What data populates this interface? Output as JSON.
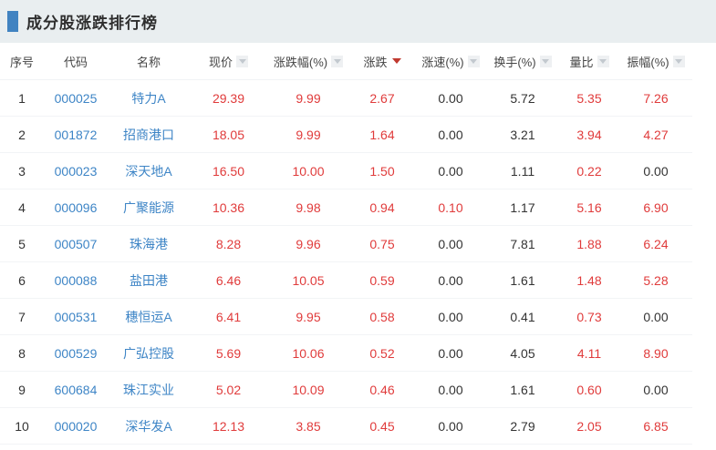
{
  "title": "成分股涨跌排行榜",
  "colors": {
    "accent_blue": "#4183c1",
    "link_blue": "#3e85c6",
    "up_red": "#e03b3b",
    "text_dark": "#333333",
    "header_text": "#454545",
    "band_background": "#e9eef0",
    "sort_arrow_inactive": "#c3c9cf",
    "sort_arrow_active": "#c0392f",
    "row_border": "#f2f4f6"
  },
  "table": {
    "columns": [
      {
        "key": "index",
        "label": "序号",
        "sortable": false,
        "sort_active": false
      },
      {
        "key": "code",
        "label": "代码",
        "sortable": false,
        "sort_active": false
      },
      {
        "key": "name",
        "label": "名称",
        "sortable": false,
        "sort_active": false
      },
      {
        "key": "price",
        "label": "现价",
        "sortable": true,
        "sort_active": false
      },
      {
        "key": "change-percent",
        "label": "涨跌幅(%)",
        "sortable": true,
        "sort_active": false
      },
      {
        "key": "change",
        "label": "涨跌",
        "sortable": true,
        "sort_active": true,
        "sort_direction": "desc"
      },
      {
        "key": "speed",
        "label": "涨速(%)",
        "sortable": true,
        "sort_active": false
      },
      {
        "key": "turnover",
        "label": "换手(%)",
        "sortable": true,
        "sort_active": false
      },
      {
        "key": "volume-ratio",
        "label": "量比",
        "sortable": true,
        "sort_active": false
      },
      {
        "key": "amplitude",
        "label": "振幅(%)",
        "sortable": true,
        "sort_active": false
      }
    ],
    "rows": [
      {
        "cells": [
          [
            "1",
            "dark"
          ],
          [
            "000025",
            "blue"
          ],
          [
            "特力A",
            "blue"
          ],
          [
            "29.39",
            "red"
          ],
          [
            "9.99",
            "red"
          ],
          [
            "2.67",
            "red"
          ],
          [
            "0.00",
            "dark"
          ],
          [
            "5.72",
            "dark"
          ],
          [
            "5.35",
            "red"
          ],
          [
            "7.26",
            "red"
          ]
        ]
      },
      {
        "cells": [
          [
            "2",
            "dark"
          ],
          [
            "001872",
            "blue"
          ],
          [
            "招商港口",
            "blue"
          ],
          [
            "18.05",
            "red"
          ],
          [
            "9.99",
            "red"
          ],
          [
            "1.64",
            "red"
          ],
          [
            "0.00",
            "dark"
          ],
          [
            "3.21",
            "dark"
          ],
          [
            "3.94",
            "red"
          ],
          [
            "4.27",
            "red"
          ]
        ]
      },
      {
        "cells": [
          [
            "3",
            "dark"
          ],
          [
            "000023",
            "blue"
          ],
          [
            "深天地A",
            "blue"
          ],
          [
            "16.50",
            "red"
          ],
          [
            "10.00",
            "red"
          ],
          [
            "1.50",
            "red"
          ],
          [
            "0.00",
            "dark"
          ],
          [
            "1.11",
            "dark"
          ],
          [
            "0.22",
            "red"
          ],
          [
            "0.00",
            "dark"
          ]
        ]
      },
      {
        "cells": [
          [
            "4",
            "dark"
          ],
          [
            "000096",
            "blue"
          ],
          [
            "广聚能源",
            "blue"
          ],
          [
            "10.36",
            "red"
          ],
          [
            "9.98",
            "red"
          ],
          [
            "0.94",
            "red"
          ],
          [
            "0.10",
            "red"
          ],
          [
            "1.17",
            "dark"
          ],
          [
            "5.16",
            "red"
          ],
          [
            "6.90",
            "red"
          ]
        ]
      },
      {
        "cells": [
          [
            "5",
            "dark"
          ],
          [
            "000507",
            "blue"
          ],
          [
            "珠海港",
            "blue"
          ],
          [
            "8.28",
            "red"
          ],
          [
            "9.96",
            "red"
          ],
          [
            "0.75",
            "red"
          ],
          [
            "0.00",
            "dark"
          ],
          [
            "7.81",
            "dark"
          ],
          [
            "1.88",
            "red"
          ],
          [
            "6.24",
            "red"
          ]
        ]
      },
      {
        "cells": [
          [
            "6",
            "dark"
          ],
          [
            "000088",
            "blue"
          ],
          [
            "盐田港",
            "blue"
          ],
          [
            "6.46",
            "red"
          ],
          [
            "10.05",
            "red"
          ],
          [
            "0.59",
            "red"
          ],
          [
            "0.00",
            "dark"
          ],
          [
            "1.61",
            "dark"
          ],
          [
            "1.48",
            "red"
          ],
          [
            "5.28",
            "red"
          ]
        ]
      },
      {
        "cells": [
          [
            "7",
            "dark"
          ],
          [
            "000531",
            "blue"
          ],
          [
            "穗恒运A",
            "blue"
          ],
          [
            "6.41",
            "red"
          ],
          [
            "9.95",
            "red"
          ],
          [
            "0.58",
            "red"
          ],
          [
            "0.00",
            "dark"
          ],
          [
            "0.41",
            "dark"
          ],
          [
            "0.73",
            "red"
          ],
          [
            "0.00",
            "dark"
          ]
        ]
      },
      {
        "cells": [
          [
            "8",
            "dark"
          ],
          [
            "000529",
            "blue"
          ],
          [
            "广弘控股",
            "blue"
          ],
          [
            "5.69",
            "red"
          ],
          [
            "10.06",
            "red"
          ],
          [
            "0.52",
            "red"
          ],
          [
            "0.00",
            "dark"
          ],
          [
            "4.05",
            "dark"
          ],
          [
            "4.11",
            "red"
          ],
          [
            "8.90",
            "red"
          ]
        ]
      },
      {
        "cells": [
          [
            "9",
            "dark"
          ],
          [
            "600684",
            "blue"
          ],
          [
            "珠江实业",
            "blue"
          ],
          [
            "5.02",
            "red"
          ],
          [
            "10.09",
            "red"
          ],
          [
            "0.46",
            "red"
          ],
          [
            "0.00",
            "dark"
          ],
          [
            "1.61",
            "dark"
          ],
          [
            "0.60",
            "red"
          ],
          [
            "0.00",
            "dark"
          ]
        ]
      },
      {
        "cells": [
          [
            "10",
            "dark"
          ],
          [
            "000020",
            "blue"
          ],
          [
            "深华发A",
            "blue"
          ],
          [
            "12.13",
            "red"
          ],
          [
            "3.85",
            "red"
          ],
          [
            "0.45",
            "red"
          ],
          [
            "0.00",
            "dark"
          ],
          [
            "2.79",
            "dark"
          ],
          [
            "2.05",
            "red"
          ],
          [
            "6.85",
            "red"
          ]
        ]
      }
    ]
  }
}
